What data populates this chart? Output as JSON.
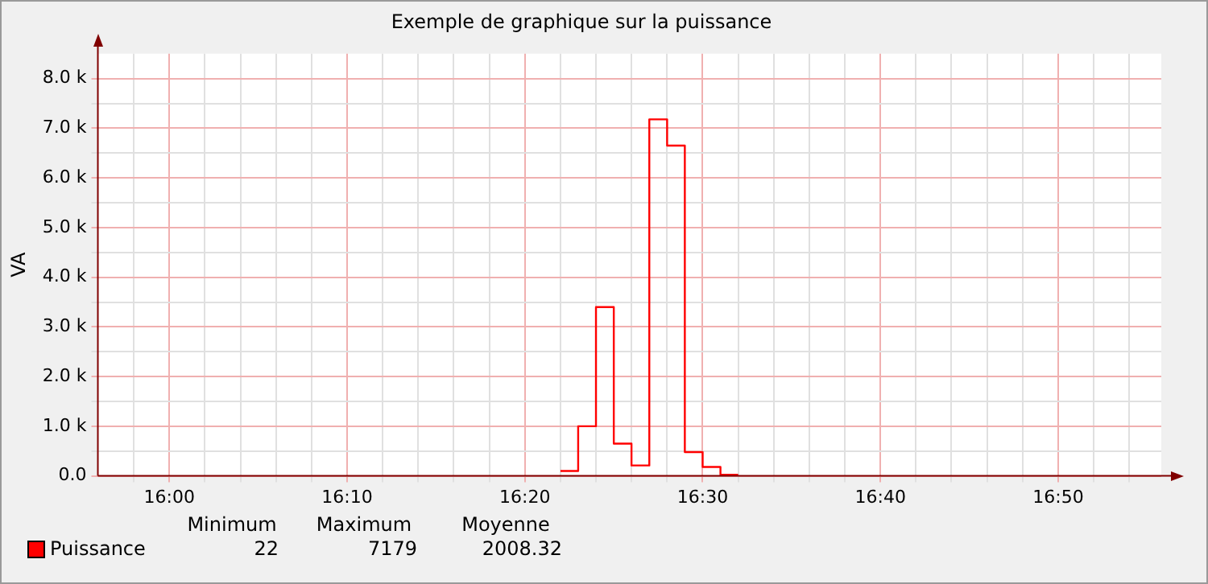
{
  "chart_data": {
    "type": "step",
    "title": "Exemple de graphique sur la puissance",
    "ylabel": "VA",
    "x": [
      16.3667,
      16.3833,
      16.4,
      16.4167,
      16.4333,
      16.45,
      16.4667,
      16.4833,
      16.5,
      16.5167,
      16.5333
    ],
    "series": [
      {
        "name": "Puissance",
        "color": "#ff0000",
        "values": [
          100,
          1000,
          3400,
          650,
          210,
          7179,
          6650,
          480,
          180,
          22,
          22
        ]
      }
    ],
    "xlim": [
      15.933,
      16.93
    ],
    "xticks": [
      {
        "value": 15.9667,
        "label": null
      },
      {
        "value": 16,
        "label": "16:00"
      },
      {
        "value": 16.0333,
        "label": null
      },
      {
        "value": 16.0667,
        "label": null
      },
      {
        "value": 16.1,
        "label": null
      },
      {
        "value": 16.1333,
        "label": null
      },
      {
        "value": 16.1667,
        "label": "16:10"
      },
      {
        "value": 16.2,
        "label": null
      },
      {
        "value": 16.2333,
        "label": null
      },
      {
        "value": 16.2667,
        "label": null
      },
      {
        "value": 16.3,
        "label": null
      },
      {
        "value": 16.3333,
        "label": "16:20"
      },
      {
        "value": 16.3667,
        "label": null
      },
      {
        "value": 16.4,
        "label": null
      },
      {
        "value": 16.4333,
        "label": null
      },
      {
        "value": 16.4667,
        "label": null
      },
      {
        "value": 16.5,
        "label": "16:30"
      },
      {
        "value": 16.5333,
        "label": null
      },
      {
        "value": 16.5667,
        "label": null
      },
      {
        "value": 16.6,
        "label": null
      },
      {
        "value": 16.6333,
        "label": null
      },
      {
        "value": 16.6667,
        "label": "16:40"
      },
      {
        "value": 16.7,
        "label": null
      },
      {
        "value": 16.7333,
        "label": null
      },
      {
        "value": 16.7667,
        "label": null
      },
      {
        "value": 16.8,
        "label": null
      },
      {
        "value": 16.8333,
        "label": "16:50"
      },
      {
        "value": 16.8667,
        "label": null
      },
      {
        "value": 16.9,
        "label": null
      }
    ],
    "ylim": [
      0,
      8500
    ],
    "yticks": [
      {
        "value": 0,
        "label": "0.0"
      },
      {
        "value": 500,
        "label": null
      },
      {
        "value": 1000,
        "label": "1.0 k"
      },
      {
        "value": 1500,
        "label": null
      },
      {
        "value": 2000,
        "label": "2.0 k"
      },
      {
        "value": 2500,
        "label": null
      },
      {
        "value": 3000,
        "label": "3.0 k"
      },
      {
        "value": 3500,
        "label": null
      },
      {
        "value": 4000,
        "label": "4.0 k"
      },
      {
        "value": 4500,
        "label": null
      },
      {
        "value": 5000,
        "label": "5.0 k"
      },
      {
        "value": 5500,
        "label": null
      },
      {
        "value": 6000,
        "label": "6.0 k"
      },
      {
        "value": 6500,
        "label": null
      },
      {
        "value": 7000,
        "label": "7.0 k"
      },
      {
        "value": 7500,
        "label": null
      },
      {
        "value": 8000,
        "label": "8.0 k"
      }
    ],
    "grid": true,
    "legend": "bottom left",
    "annotations": [
      "Minimum",
      "Maximum",
      "Moyenne",
      "22",
      "7179",
      "2008.32"
    ]
  }
}
